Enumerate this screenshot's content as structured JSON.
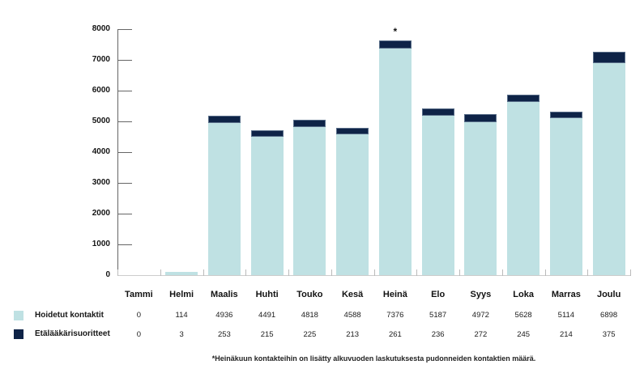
{
  "chart_data": {
    "type": "bar",
    "stacked": true,
    "title": "",
    "categories": [
      "Tammi",
      "Helmi",
      "Maalis",
      "Huhti",
      "Touko",
      "Kesä",
      "Heinä",
      "Elo",
      "Syys",
      "Loka",
      "Marras",
      "Joulu"
    ],
    "series": [
      {
        "name": "Hoidetut kontaktit",
        "color": "#bfe1e3",
        "values": [
          0,
          114,
          4936,
          4491,
          4818,
          4588,
          7376,
          5187,
          4972,
          5628,
          5114,
          6898
        ]
      },
      {
        "name": "Etälääkärisuoritteet",
        "color": "#0e2347",
        "values": [
          0,
          3,
          253,
          215,
          225,
          213,
          261,
          236,
          272,
          245,
          214,
          375
        ]
      }
    ],
    "ylim": [
      0,
      8000
    ],
    "yticks": [
      0,
      1000,
      2000,
      3000,
      4000,
      5000,
      6000,
      7000,
      8000
    ],
    "xlabel": "",
    "ylabel": "",
    "grid": false,
    "legend_position": "bottom-left",
    "annotation": {
      "category": "Heinä",
      "symbol": "*"
    },
    "footnote": "*Heinäkuun kontakteihin on lisätty alkuvuoden laskutuksesta pudonneiden kontaktien määrä."
  }
}
